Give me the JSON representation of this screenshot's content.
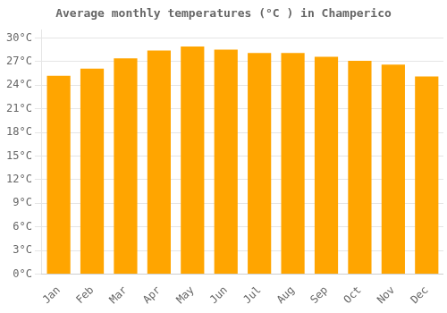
{
  "chart_data": {
    "type": "bar",
    "title": "Average monthly temperatures (°C ) in Champerico",
    "categories": [
      "Jan",
      "Feb",
      "Mar",
      "Apr",
      "May",
      "Jun",
      "Jul",
      "Aug",
      "Sep",
      "Oct",
      "Nov",
      "Dec"
    ],
    "values": [
      25.2,
      26.1,
      27.4,
      28.4,
      28.9,
      28.5,
      28.1,
      28.1,
      27.6,
      27.1,
      26.6,
      25.1
    ],
    "color": "#FFA500",
    "ylim": [
      0,
      31
    ],
    "yticks": [
      {
        "value": 0,
        "label": "0°C"
      },
      {
        "value": 3,
        "label": "3°C"
      },
      {
        "value": 6,
        "label": "6°C"
      },
      {
        "value": 9,
        "label": "9°C"
      },
      {
        "value": 12,
        "label": "12°C"
      },
      {
        "value": 15,
        "label": "15°C"
      },
      {
        "value": 18,
        "label": "18°C"
      },
      {
        "value": 21,
        "label": "21°C"
      },
      {
        "value": 24,
        "label": "24°C"
      },
      {
        "value": 27,
        "label": "27°C"
      },
      {
        "value": 30,
        "label": "30°C"
      }
    ],
    "grid": "y"
  }
}
